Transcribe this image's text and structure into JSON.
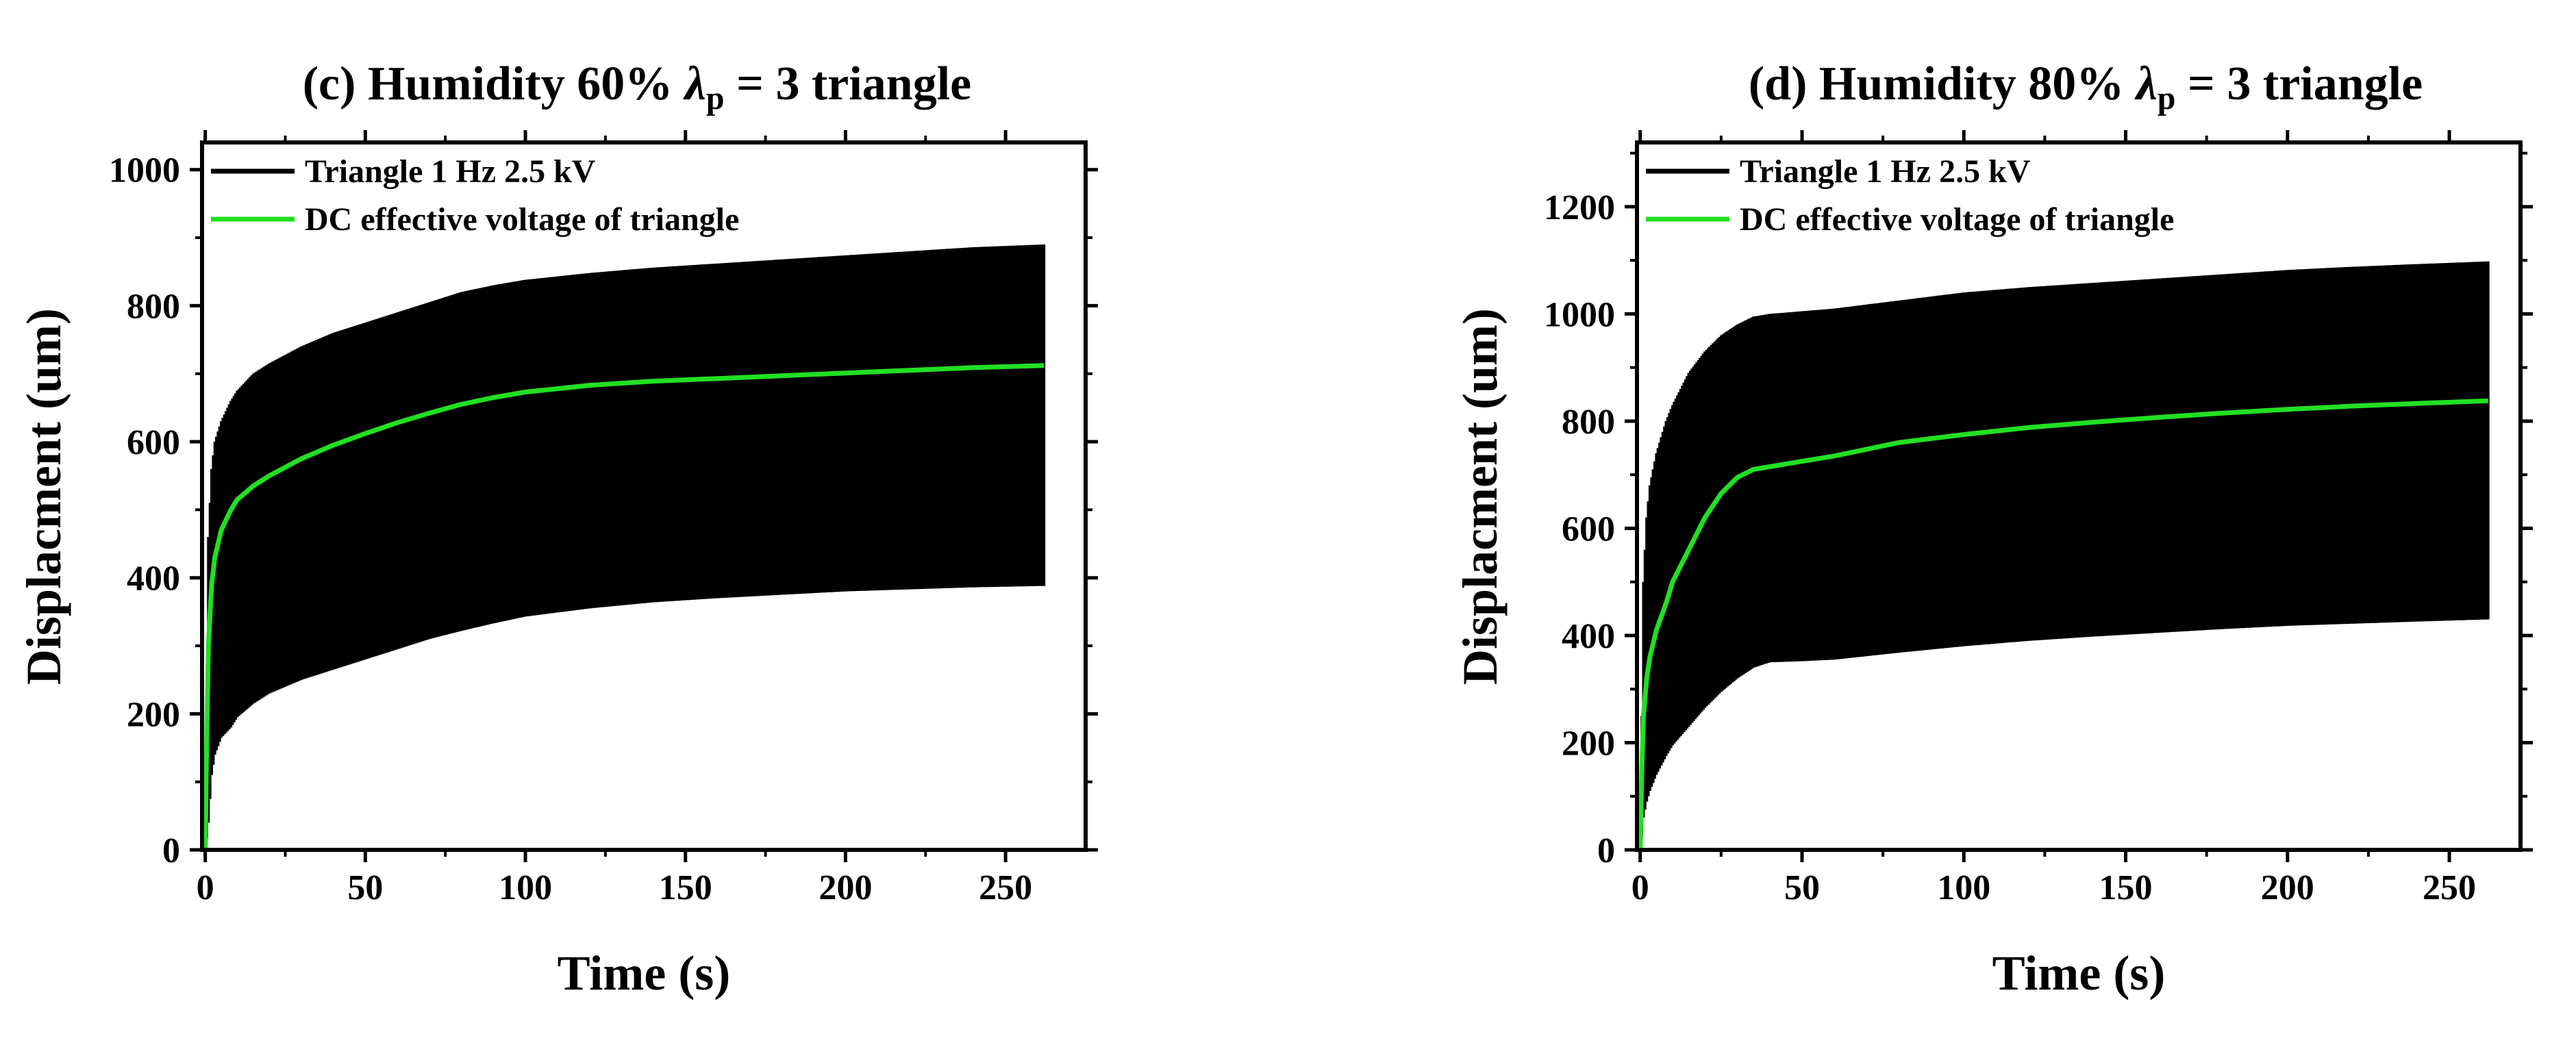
{
  "chart_data": [
    {
      "type": "line",
      "title": "(c) Humidity 60%  λp = 3  triangle",
      "title_parts": {
        "main": "(c) Humidity 60%  ",
        "lambda": "λ",
        "subscript": "p",
        "rest": " = 3  triangle"
      },
      "xlabel": "Time (s)",
      "ylabel": "Displacment (um)",
      "xlim": [
        -1,
        275
      ],
      "ylim": [
        0,
        1040
      ],
      "x_ticks": [
        0,
        50,
        100,
        150,
        200,
        250
      ],
      "y_ticks": [
        0,
        200,
        400,
        600,
        800,
        1000
      ],
      "legend_position": "top-left",
      "series": [
        {
          "name": "Triangle 1 Hz 2.5 kV",
          "color": "#000000",
          "style": "oscillating-envelope",
          "x": [
            0,
            1,
            2,
            3,
            5,
            8,
            10,
            15,
            20,
            30,
            40,
            50,
            60,
            70,
            80,
            90,
            100,
            120,
            140,
            160,
            180,
            200,
            220,
            240,
            262
          ],
          "upper": [
            0,
            460,
            560,
            600,
            630,
            660,
            675,
            700,
            715,
            740,
            760,
            775,
            790,
            805,
            820,
            830,
            838,
            848,
            856,
            862,
            868,
            874,
            880,
            886,
            890
          ],
          "lower": [
            0,
            40,
            110,
            140,
            165,
            180,
            195,
            215,
            230,
            250,
            265,
            280,
            295,
            310,
            322,
            333,
            343,
            355,
            364,
            370,
            375,
            380,
            383,
            386,
            388
          ]
        },
        {
          "name": "DC effective voltage of triangle",
          "color": "#22e022",
          "style": "line",
          "x": [
            0,
            0.5,
            1,
            2,
            3,
            5,
            8,
            10,
            15,
            20,
            30,
            40,
            50,
            60,
            70,
            80,
            90,
            100,
            120,
            140,
            160,
            180,
            200,
            220,
            240,
            262
          ],
          "values": [
            0,
            180,
            300,
            390,
            430,
            470,
            500,
            515,
            535,
            550,
            575,
            595,
            612,
            628,
            642,
            655,
            665,
            673,
            683,
            689,
            693,
            697,
            701,
            705,
            709,
            712
          ]
        }
      ]
    },
    {
      "type": "line",
      "title": "(d) Humidity 80%  λp = 3  triangle",
      "title_parts": {
        "main": "(d) Humidity 80%  ",
        "lambda": "λ",
        "subscript": "p",
        "rest": " = 3  triangle"
      },
      "xlabel": "Time (s)",
      "ylabel": "Displacment (um)",
      "xlim": [
        -1,
        272
      ],
      "ylim": [
        0,
        1320
      ],
      "x_ticks": [
        0,
        50,
        100,
        150,
        200,
        250
      ],
      "y_ticks": [
        0,
        200,
        400,
        600,
        800,
        1000,
        1200
      ],
      "legend_position": "top-left",
      "series": [
        {
          "name": "Triangle 1 Hz 2.5 kV",
          "color": "#000000",
          "style": "oscillating-envelope",
          "x": [
            0,
            1,
            2,
            3,
            5,
            8,
            10,
            15,
            20,
            25,
            30,
            35,
            40,
            50,
            60,
            80,
            100,
            120,
            140,
            160,
            180,
            200,
            220,
            240,
            262
          ],
          "upper": [
            0,
            500,
            620,
            680,
            740,
            800,
            830,
            890,
            930,
            960,
            980,
            995,
            1000,
            1005,
            1010,
            1025,
            1040,
            1050,
            1058,
            1066,
            1074,
            1082,
            1088,
            1093,
            1098
          ],
          "lower": [
            0,
            60,
            90,
            110,
            140,
            175,
            195,
            230,
            265,
            295,
            320,
            340,
            350,
            352,
            355,
            368,
            380,
            390,
            398,
            405,
            412,
            418,
            422,
            426,
            430
          ]
        },
        {
          "name": "DC effective voltage of triangle",
          "color": "#22e022",
          "style": "line",
          "x": [
            0,
            0.5,
            1,
            2,
            3,
            5,
            8,
            10,
            15,
            20,
            25,
            30,
            35,
            40,
            50,
            60,
            80,
            100,
            120,
            140,
            160,
            180,
            200,
            220,
            240,
            262
          ],
          "values": [
            0,
            150,
            250,
            320,
            360,
            410,
            460,
            500,
            560,
            620,
            665,
            695,
            710,
            715,
            725,
            735,
            760,
            775,
            788,
            798,
            807,
            815,
            822,
            828,
            833,
            838
          ]
        }
      ]
    }
  ]
}
